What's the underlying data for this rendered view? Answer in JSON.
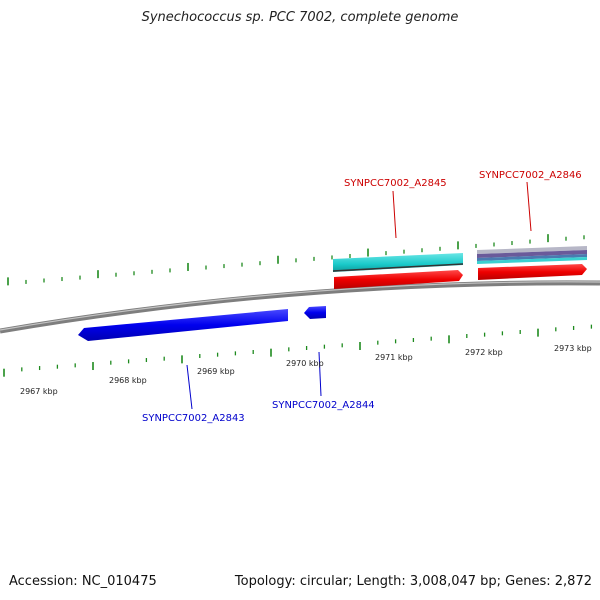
{
  "title": "Synechococcus sp. PCC 7002, complete genome",
  "footer": {
    "accession": "Accession: NC_010475",
    "summary": "Topology: circular; Length: 3,008,047 bp; Genes: 2,872"
  },
  "scale_labels": [
    "2967 kbp",
    "2968 kbp",
    "2969 kbp",
    "2970 kbp",
    "2971 kbp",
    "2972 kbp",
    "2973 kbp"
  ],
  "genes": [
    {
      "id": "SYNPCC7002_A2843",
      "strand": "-",
      "color": "#0000ee"
    },
    {
      "id": "SYNPCC7002_A2844",
      "strand": "-",
      "color": "#0000ee"
    },
    {
      "id": "SYNPCC7002_A2845",
      "strand": "+",
      "color": "#ee0000"
    },
    {
      "id": "SYNPCC7002_A2846",
      "strand": "+",
      "color": "#ee0000"
    }
  ],
  "colors": {
    "backbone": "#8c8c8c",
    "ticks": "#1e8a1e",
    "forward_gene": "#ee0000",
    "reverse_gene": "#0000ee",
    "cds_band": "#19c9c9",
    "purple_band": "#6a5a9a"
  }
}
